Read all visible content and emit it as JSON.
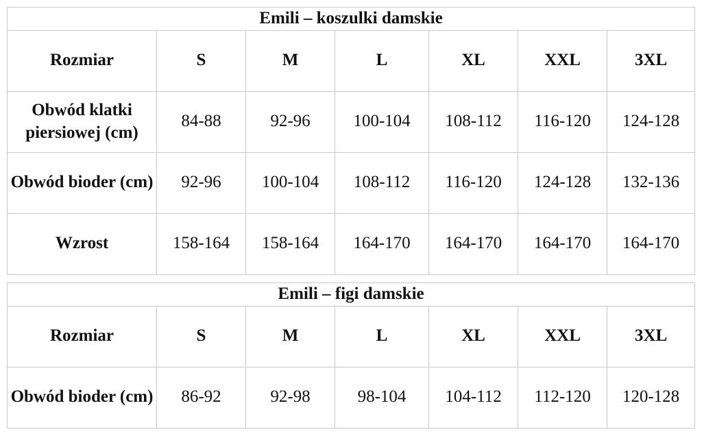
{
  "tables": [
    {
      "title": "Emili – koszulki damskie",
      "header": [
        "Rozmiar",
        "S",
        "M",
        "L",
        "XL",
        "XXL",
        "3XL"
      ],
      "rows": [
        [
          "Obwód klatki piersiowej (cm)",
          "84-88",
          "92-96",
          "100-104",
          "108-112",
          "116-120",
          "124-128"
        ],
        [
          "Obwód bioder (cm)",
          "92-96",
          "100-104",
          "108-112",
          "116-120",
          "124-128",
          "132-136"
        ],
        [
          "Wzrost",
          "158-164",
          "158-164",
          "164-170",
          "164-170",
          "164-170",
          "164-170"
        ]
      ]
    },
    {
      "title": "Emili – figi damskie",
      "header": [
        "Rozmiar",
        "S",
        "M",
        "L",
        "XL",
        "XXL",
        "3XL"
      ],
      "rows": [
        [
          "Obwód bioder (cm)",
          "86-92",
          "92-98",
          "98-104",
          "104-112",
          "112-120",
          "120-128"
        ]
      ]
    }
  ]
}
